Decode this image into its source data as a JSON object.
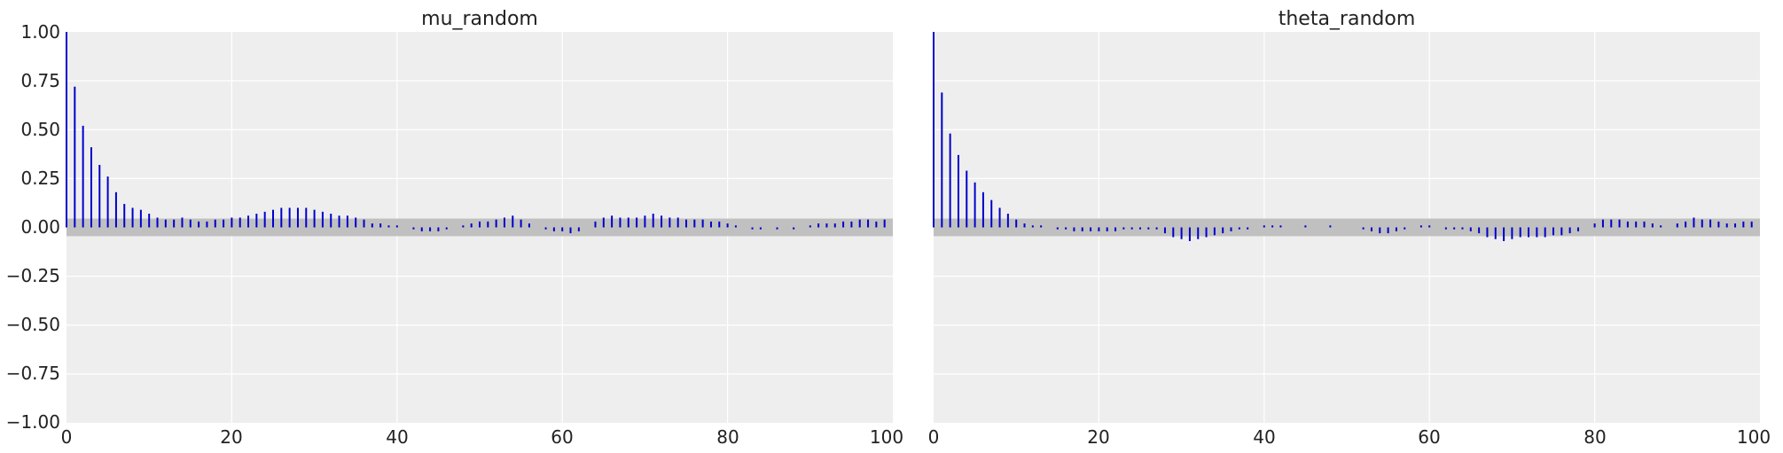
{
  "colors": {
    "panel_bg": "#eeeeee",
    "grid": "#ffffff",
    "bar": "#0000cc",
    "band": "#c0c0c0"
  },
  "chart_data": [
    {
      "type": "bar",
      "title": "mu_random",
      "xlabel": "",
      "ylabel": "",
      "xlim": [
        0,
        100
      ],
      "ylim": [
        -1.0,
        1.0
      ],
      "x_ticks": [
        "0",
        "20",
        "40",
        "60",
        "80",
        "100"
      ],
      "y_ticks": [
        "1.00",
        "0.75",
        "0.50",
        "0.25",
        "0.00",
        "−0.25",
        "−0.50",
        "−0.75",
        "−1.00"
      ],
      "grid": true,
      "confidence_band": [
        -0.045,
        0.045
      ],
      "lags": [
        0,
        1,
        2,
        3,
        4,
        5,
        6,
        7,
        8,
        9,
        10,
        11,
        12,
        13,
        14,
        15,
        16,
        17,
        18,
        19,
        20,
        21,
        22,
        23,
        24,
        25,
        26,
        27,
        28,
        29,
        30,
        31,
        32,
        33,
        34,
        35,
        36,
        37,
        38,
        39,
        40,
        41,
        42,
        43,
        44,
        45,
        46,
        47,
        48,
        49,
        50,
        51,
        52,
        53,
        54,
        55,
        56,
        57,
        58,
        59,
        60,
        61,
        62,
        63,
        64,
        65,
        66,
        67,
        68,
        69,
        70,
        71,
        72,
        73,
        74,
        75,
        76,
        77,
        78,
        79,
        80,
        81,
        82,
        83,
        84,
        85,
        86,
        87,
        88,
        89,
        90,
        91,
        92,
        93,
        94,
        95,
        96,
        97,
        98,
        99
      ],
      "values": [
        1.0,
        0.72,
        0.52,
        0.41,
        0.32,
        0.26,
        0.18,
        0.12,
        0.1,
        0.09,
        0.07,
        0.05,
        0.04,
        0.04,
        0.05,
        0.04,
        0.03,
        0.03,
        0.04,
        0.04,
        0.05,
        0.05,
        0.06,
        0.07,
        0.08,
        0.09,
        0.1,
        0.1,
        0.1,
        0.1,
        0.09,
        0.08,
        0.07,
        0.06,
        0.06,
        0.05,
        0.04,
        0.02,
        0.02,
        0.01,
        0.01,
        0.0,
        -0.01,
        -0.02,
        -0.02,
        -0.02,
        -0.01,
        0.0,
        0.01,
        0.02,
        0.03,
        0.03,
        0.04,
        0.05,
        0.06,
        0.04,
        0.02,
        0.0,
        -0.01,
        -0.02,
        -0.02,
        -0.03,
        -0.02,
        0.0,
        0.03,
        0.05,
        0.06,
        0.05,
        0.05,
        0.05,
        0.06,
        0.07,
        0.06,
        0.05,
        0.05,
        0.04,
        0.04,
        0.04,
        0.03,
        0.03,
        0.02,
        0.01,
        0.0,
        -0.01,
        -0.01,
        0.0,
        -0.01,
        0.0,
        -0.01,
        0.0,
        0.01,
        0.02,
        0.02,
        0.02,
        0.03,
        0.03,
        0.04,
        0.04,
        0.03,
        0.04
      ]
    },
    {
      "type": "bar",
      "title": "theta_random",
      "xlabel": "",
      "ylabel": "",
      "xlim": [
        0,
        100
      ],
      "ylim": [
        -1.0,
        1.0
      ],
      "x_ticks": [
        "0",
        "20",
        "40",
        "60",
        "80",
        "100"
      ],
      "y_ticks": [],
      "grid": true,
      "confidence_band": [
        -0.045,
        0.045
      ],
      "lags": [
        0,
        1,
        2,
        3,
        4,
        5,
        6,
        7,
        8,
        9,
        10,
        11,
        12,
        13,
        14,
        15,
        16,
        17,
        18,
        19,
        20,
        21,
        22,
        23,
        24,
        25,
        26,
        27,
        28,
        29,
        30,
        31,
        32,
        33,
        34,
        35,
        36,
        37,
        38,
        39,
        40,
        41,
        42,
        43,
        44,
        45,
        46,
        47,
        48,
        49,
        50,
        51,
        52,
        53,
        54,
        55,
        56,
        57,
        58,
        59,
        60,
        61,
        62,
        63,
        64,
        65,
        66,
        67,
        68,
        69,
        70,
        71,
        72,
        73,
        74,
        75,
        76,
        77,
        78,
        79,
        80,
        81,
        82,
        83,
        84,
        85,
        86,
        87,
        88,
        89,
        90,
        91,
        92,
        93,
        94,
        95,
        96,
        97,
        98,
        99
      ],
      "values": [
        1.0,
        0.69,
        0.48,
        0.37,
        0.29,
        0.23,
        0.18,
        0.14,
        0.1,
        0.07,
        0.04,
        0.02,
        0.01,
        0.01,
        0.0,
        -0.01,
        -0.01,
        -0.02,
        -0.02,
        -0.02,
        -0.02,
        -0.02,
        -0.02,
        -0.01,
        -0.01,
        -0.01,
        -0.01,
        -0.01,
        -0.03,
        -0.05,
        -0.06,
        -0.07,
        -0.06,
        -0.05,
        -0.04,
        -0.03,
        -0.02,
        -0.01,
        -0.01,
        0.0,
        0.01,
        0.01,
        0.01,
        0.0,
        0.0,
        0.01,
        0.0,
        0.0,
        0.01,
        0.0,
        0.0,
        0.0,
        -0.01,
        -0.02,
        -0.03,
        -0.03,
        -0.02,
        -0.01,
        0.0,
        0.01,
        0.01,
        0.0,
        -0.01,
        -0.01,
        -0.01,
        -0.02,
        -0.03,
        -0.05,
        -0.06,
        -0.07,
        -0.06,
        -0.05,
        -0.05,
        -0.05,
        -0.05,
        -0.04,
        -0.04,
        -0.03,
        -0.02,
        0.0,
        0.02,
        0.04,
        0.04,
        0.04,
        0.03,
        0.03,
        0.03,
        0.02,
        0.01,
        0.0,
        0.02,
        0.03,
        0.05,
        0.04,
        0.04,
        0.03,
        0.02,
        0.02,
        0.03,
        0.03
      ]
    }
  ]
}
